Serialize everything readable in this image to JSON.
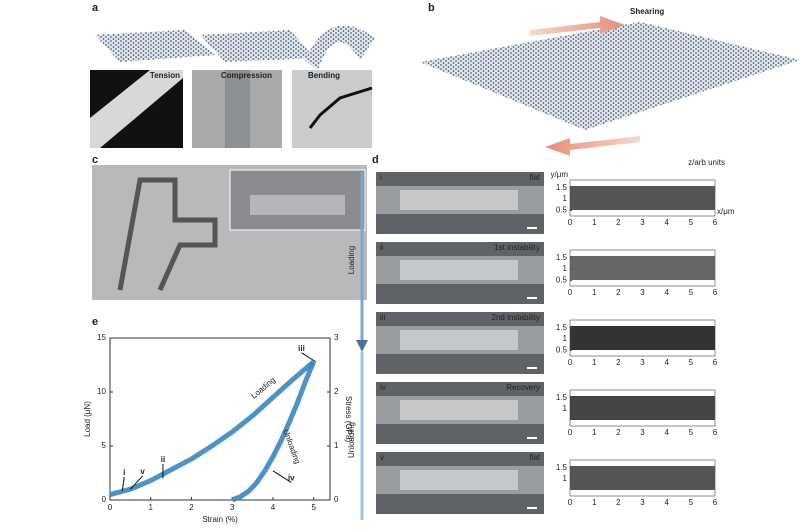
{
  "panel_a": {
    "label": "a",
    "images": [
      "Tension",
      "Compression",
      "Bending"
    ]
  },
  "panel_b": {
    "label": "b",
    "arrow_label": "Shearing"
  },
  "panel_c": {
    "label": "c"
  },
  "panel_d": {
    "label": "d",
    "z_label": "z/arb units",
    "y_label": "y/μm",
    "x_label": "x/μm",
    "loading": "Loading",
    "unloading": "Unloading",
    "rows": [
      {
        "roman": "i",
        "state": "flat",
        "yticks": [
          1.5,
          1,
          0.5
        ]
      },
      {
        "roman": "ii",
        "state": "1st instability",
        "yticks": [
          1.5,
          1,
          0.5
        ]
      },
      {
        "roman": "iii",
        "state": "2nd instability",
        "yticks": [
          1.5,
          1,
          0.5
        ]
      },
      {
        "roman": "iv",
        "state": "Recovery",
        "yticks": [
          1.5,
          1
        ]
      },
      {
        "roman": "v",
        "state": "flat",
        "yticks": [
          1.5,
          1
        ]
      }
    ],
    "xticks": [
      0,
      1,
      2,
      3,
      4,
      5,
      6
    ]
  },
  "panel_e": {
    "label": "e",
    "x_label": "Strain (%)",
    "y_label": "Load (μN)",
    "y2_label": "Stress (GPa)",
    "xlim": [
      0,
      5.4
    ],
    "xticks": [
      0,
      1,
      2,
      3,
      4,
      5
    ],
    "ylim": [
      0,
      15
    ],
    "yticks": [
      0,
      5,
      10,
      15
    ],
    "y2lim": [
      0,
      3
    ],
    "y2ticks": [
      0,
      1,
      2,
      3
    ],
    "loading": "Loading",
    "unloading": "Unloading",
    "color": "#3a87c0",
    "loading_curve": {
      "x": [
        0,
        0.5,
        1,
        1.5,
        2,
        2.5,
        3,
        3.5,
        4,
        4.5,
        5
      ],
      "y": [
        0.5,
        1,
        1.8,
        2.8,
        3.8,
        5,
        6.3,
        7.8,
        9.5,
        11.2,
        12.8
      ]
    },
    "unloading_curve": {
      "x": [
        5,
        4.8,
        4.6,
        4.4,
        4.2,
        4,
        3.8,
        3.6,
        3.4,
        3.2,
        3
      ],
      "y": [
        12.8,
        11,
        9,
        7.2,
        5.5,
        4,
        2.7,
        1.6,
        0.8,
        0.3,
        0
      ]
    },
    "points": [
      "i",
      "v",
      "ii",
      "iii",
      "iv"
    ]
  }
}
